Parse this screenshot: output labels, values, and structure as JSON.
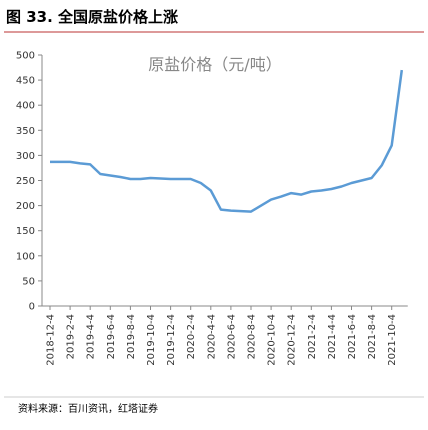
{
  "heading": "图 33. 全国原盐价格上涨",
  "source": "资料来源：百川资讯，红塔证券",
  "chart_data": {
    "type": "line",
    "title": "原盐价格（元/吨）",
    "categories": [
      "2018-12-4",
      null,
      "2019-2-4",
      null,
      "2019-4-4",
      null,
      "2019-6-4",
      null,
      "2019-8-4",
      null,
      "2019-10-4",
      null,
      "2019-12-4",
      null,
      "2020-2-4",
      null,
      "2020-4-4",
      null,
      "2020-6-4",
      null,
      "2020-8-4",
      null,
      "2020-10-4",
      null,
      "2020-12-4",
      null,
      "2021-2-4",
      null,
      "2021-4-4",
      null,
      "2021-6-4",
      null,
      "2021-8-4",
      null,
      "2021-10-4",
      null
    ],
    "series": [
      {
        "name": "原盐价格",
        "color": "#5b9bd5",
        "values": [
          287,
          287,
          287,
          284,
          282,
          263,
          260,
          257,
          253,
          253,
          255,
          254,
          253,
          253,
          253,
          245,
          230,
          192,
          190,
          189,
          188,
          200,
          212,
          218,
          225,
          222,
          228,
          230,
          233,
          238,
          245,
          250,
          255,
          280,
          320,
          470
        ]
      }
    ],
    "ylim": [
      0,
      500
    ],
    "yticks": [
      0,
      50,
      100,
      150,
      200,
      250,
      300,
      350,
      400,
      450,
      500
    ]
  }
}
